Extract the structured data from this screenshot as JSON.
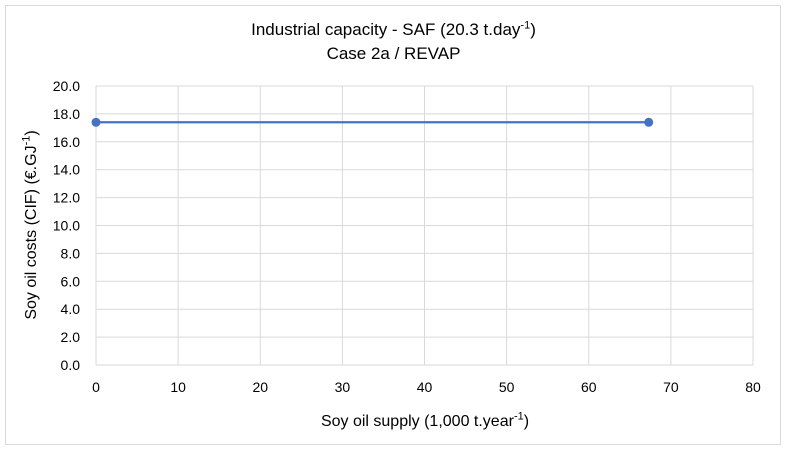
{
  "chart_data": {
    "type": "line",
    "title": "Industrial capacity - SAF (20.3 t.day",
    "title_sup": "-1",
    "title_end": ")",
    "subtitle": "Case 2a / REVAP",
    "xlabel": "Soy oil supply (1,000 t.year",
    "xlabel_sup": "-1",
    "xlabel_end": ")",
    "ylabel": "Soy oil costs (CIF) (€.GJ",
    "ylabel_sup": "-1",
    "ylabel_end": ")",
    "xlim": [
      0,
      80
    ],
    "ylim": [
      0,
      20
    ],
    "xticks": [
      "0",
      "10",
      "20",
      "30",
      "40",
      "50",
      "60",
      "70",
      "80"
    ],
    "yticks": [
      "0.0",
      "2.0",
      "4.0",
      "6.0",
      "8.0",
      "10.0",
      "12.0",
      "14.0",
      "16.0",
      "18.0",
      "20.0"
    ],
    "grid": true,
    "series": [
      {
        "x": [
          0,
          67.3
        ],
        "y": [
          17.4,
          17.4
        ],
        "color": "#4472c4"
      }
    ]
  }
}
